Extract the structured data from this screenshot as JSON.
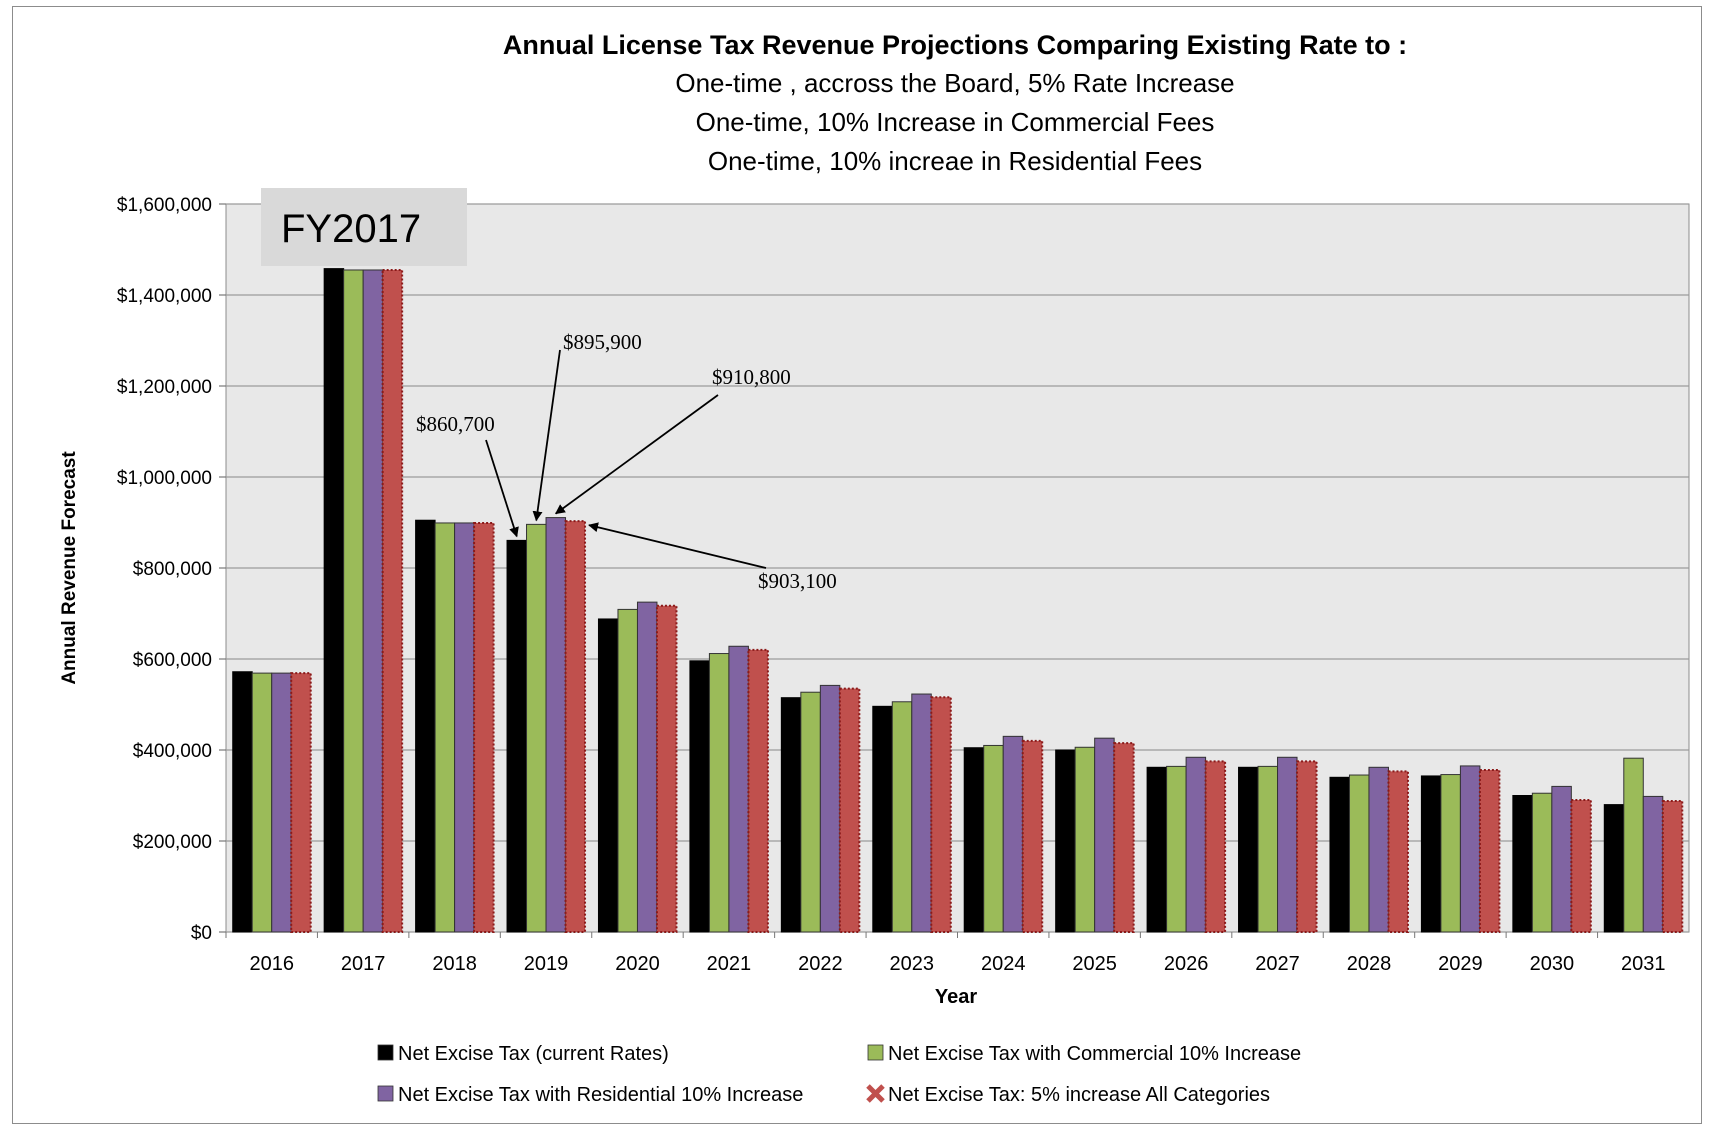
{
  "chart_data": {
    "type": "bar",
    "title_lines": [
      "Annual License Tax Revenue Projections Comparing Existing Rate to :",
      "One-time , accross the Board, 5% Rate Increase",
      "One-time, 10% Increase in  Commercial Fees",
      "One-time, 10% increae in Residential Fees"
    ],
    "xlabel": "Year",
    "ylabel": "Annual Revenue Forecast",
    "ylim": [
      0,
      1600000
    ],
    "y_ticks": [
      "$0",
      "$200,000",
      "$400,000",
      "$600,000",
      "$800,000",
      "$1,000,000",
      "$1,200,000",
      "$1,400,000",
      "$1,600,000"
    ],
    "grid": true,
    "legend_position": "bottom",
    "categories": [
      "2016",
      "2017",
      "2018",
      "2019",
      "2020",
      "2021",
      "2022",
      "2023",
      "2024",
      "2025",
      "2026",
      "2027",
      "2028",
      "2029",
      "2030",
      "2031"
    ],
    "series": [
      {
        "name": "Net Excise Tax (current Rates)",
        "color": "#000000",
        "values": [
          572000,
          1458000,
          905000,
          860700,
          688000,
          596000,
          515000,
          496000,
          405000,
          400000,
          362000,
          362000,
          340000,
          343000,
          300000,
          280000
        ]
      },
      {
        "name": "Net Excise Tax with Commercial 10% Increase",
        "color": "#9bbb59",
        "values": [
          569000,
          1455000,
          899000,
          895900,
          709000,
          612000,
          527000,
          506000,
          410000,
          406000,
          364000,
          364000,
          345000,
          346000,
          305000,
          382000
        ]
      },
      {
        "name": "Net Excise Tax with Residential 10% Increase",
        "color": "#8064a2",
        "values": [
          569000,
          1455000,
          899000,
          910800,
          725000,
          628000,
          542000,
          523000,
          430000,
          426000,
          384000,
          384000,
          362000,
          365000,
          320000,
          298000
        ]
      },
      {
        "name": "Net Excise Tax: 5% increase All Categories",
        "color": "#c0504d",
        "values": [
          569000,
          1455000,
          899000,
          903100,
          717000,
          620000,
          535000,
          516000,
          420000,
          415000,
          375000,
          375000,
          353000,
          356000,
          290000,
          288000
        ]
      }
    ],
    "annotations": [
      {
        "text": "$860,700",
        "category": "2019",
        "series_index": 0
      },
      {
        "text": "$895,900",
        "category": "2019",
        "series_index": 1
      },
      {
        "text": "$910,800",
        "category": "2019",
        "series_index": 2
      },
      {
        "text": "$903,100",
        "category": "2019",
        "series_index": 3
      }
    ],
    "callout_box": {
      "text": "FY2017",
      "fill": "#d9d9d9"
    },
    "plot_background": "#e8e8e8"
  }
}
